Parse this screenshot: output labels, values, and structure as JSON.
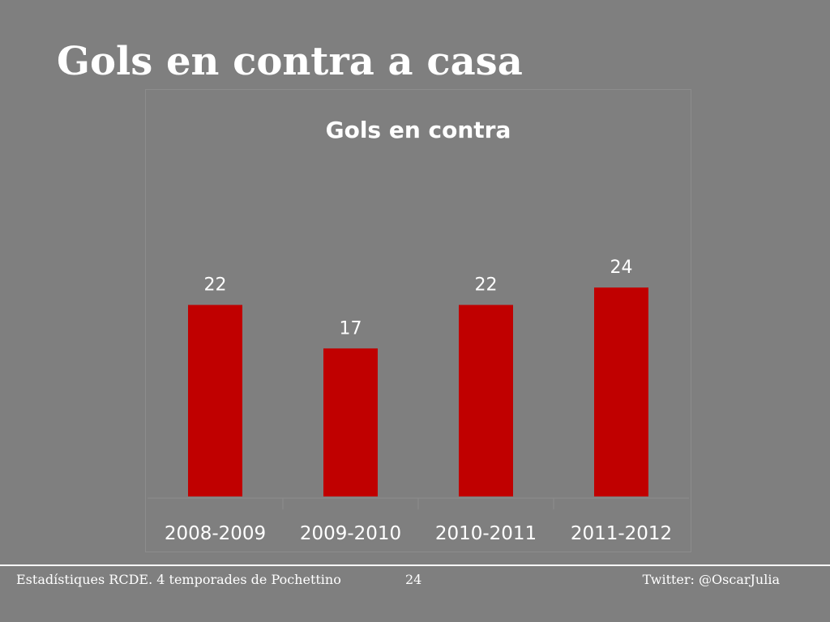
{
  "slide": {
    "title": "Gols en contra a casa"
  },
  "colors": {
    "background": "#7f7f7f",
    "bar": "#c00000",
    "text": "#ffffff"
  },
  "chart_data": {
    "type": "bar",
    "title": "Gols en contra",
    "categories": [
      "2008-2009",
      "2009-2010",
      "2010-2011",
      "2011-2012"
    ],
    "values": [
      22,
      17,
      22,
      24
    ],
    "data_labels": [
      "22",
      "17",
      "22",
      "24"
    ],
    "xlabel": "",
    "ylabel": "",
    "ylim": [
      0,
      28
    ],
    "grid": false,
    "legend": "none"
  },
  "footer": {
    "left": "Estadístiques RCDE. 4 temporades de Pochettino",
    "page_number": "24",
    "right": "Twitter: @OscarJulia"
  }
}
